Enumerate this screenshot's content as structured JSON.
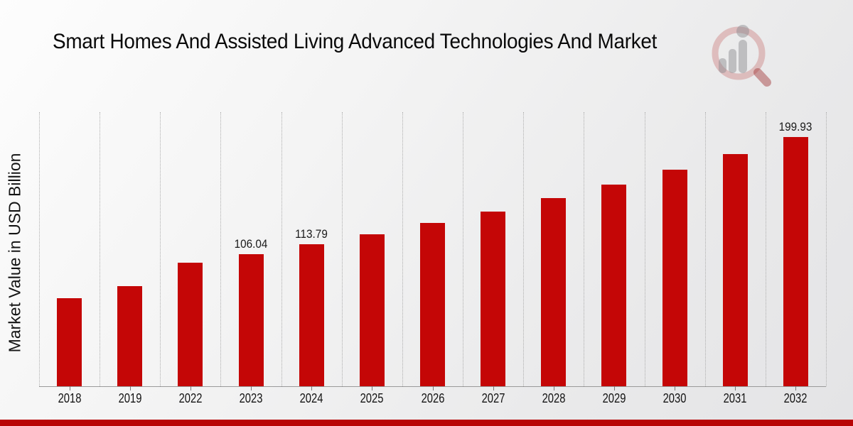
{
  "page": {
    "title": "Smart Homes And Assisted Living Advanced Technologies And Market"
  },
  "logo": {
    "name": "magnifier-bar-chart-logo",
    "ring_color": "rgba(190,80,80,0.30)",
    "handle_color": "rgba(160,50,50,0.45)",
    "bars_color": "rgba(135,135,140,0.45)"
  },
  "chart_data": {
    "type": "bar",
    "title": "Smart Homes And Assisted Living Advanced Technologies And Market",
    "xlabel": "",
    "ylabel": "Market Value in USD Billion",
    "categories": [
      "2018",
      "2019",
      "2022",
      "2023",
      "2024",
      "2025",
      "2026",
      "2027",
      "2028",
      "2029",
      "2030",
      "2031",
      "2032"
    ],
    "values": [
      70.6,
      80.5,
      99.0,
      106.04,
      113.79,
      122.1,
      131.0,
      140.5,
      150.8,
      161.8,
      173.6,
      186.3,
      199.93
    ],
    "data_labels": [
      "",
      "",
      "",
      "106.04",
      "113.79",
      "",
      "",
      "",
      "",
      "",
      "",
      "",
      "199.93"
    ],
    "ylim": [
      0,
      220
    ],
    "grid": "vertical-dotted",
    "legend": "none",
    "bar_color": "#c40606"
  },
  "footer": {
    "bar_color": "#b80505"
  }
}
